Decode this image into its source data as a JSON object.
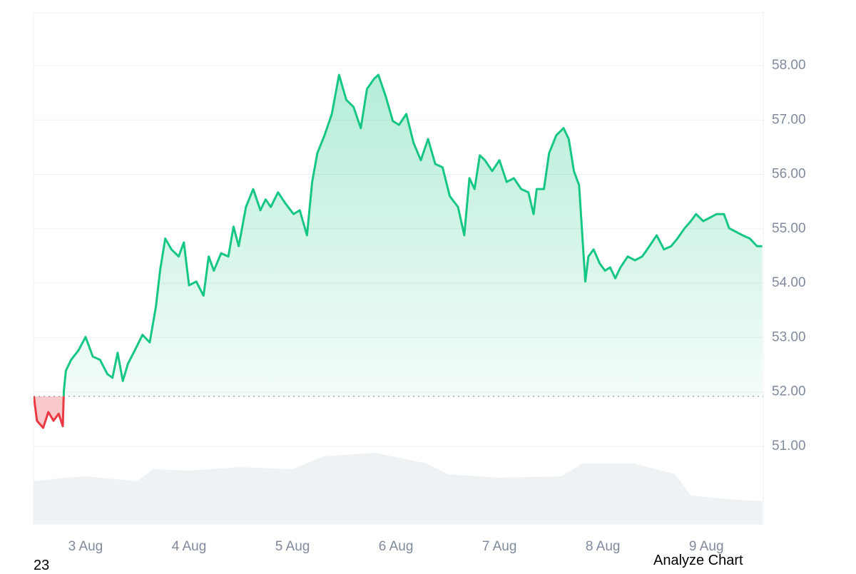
{
  "chart_data": {
    "type": "line",
    "baseline": 51.92,
    "x": [
      2.5,
      2.53,
      2.59,
      2.64,
      2.69,
      2.74,
      2.78,
      2.79,
      2.81,
      2.86,
      2.93,
      3.0,
      3.07,
      3.14,
      3.21,
      3.26,
      3.31,
      3.36,
      3.41,
      3.48,
      3.55,
      3.62,
      3.68,
      3.72,
      3.77,
      3.83,
      3.9,
      3.95,
      4.0,
      4.07,
      4.14,
      4.19,
      4.24,
      4.31,
      4.38,
      4.43,
      4.48,
      4.55,
      4.62,
      4.69,
      4.74,
      4.79,
      4.86,
      4.93,
      5.01,
      5.07,
      5.14,
      5.19,
      5.24,
      5.31,
      5.38,
      5.45,
      5.52,
      5.59,
      5.66,
      5.72,
      5.79,
      5.83,
      5.9,
      5.97,
      6.03,
      6.1,
      6.17,
      6.24,
      6.31,
      6.38,
      6.45,
      6.52,
      6.6,
      6.66,
      6.71,
      6.76,
      6.81,
      6.86,
      6.93,
      7.0,
      7.07,
      7.14,
      7.21,
      7.28,
      7.33,
      7.36,
      7.43,
      7.48,
      7.55,
      7.62,
      7.67,
      7.72,
      7.77,
      7.83,
      7.86,
      7.91,
      7.97,
      8.02,
      8.07,
      8.12,
      8.17,
      8.24,
      8.31,
      8.38,
      8.45,
      8.52,
      8.59,
      8.66,
      8.72,
      8.79,
      8.85,
      8.9,
      8.97,
      9.04,
      9.1,
      9.17,
      9.22,
      9.28,
      9.35,
      9.42,
      9.49,
      9.54
    ],
    "series": [
      {
        "color_up": "#16c784",
        "color_down": "#ea3943",
        "values": [
          51.92,
          51.47,
          51.34,
          51.63,
          51.47,
          51.6,
          51.37,
          52.02,
          52.39,
          52.59,
          52.76,
          53.01,
          52.65,
          52.59,
          52.33,
          52.26,
          52.72,
          52.2,
          52.52,
          52.78,
          53.05,
          52.91,
          53.57,
          54.23,
          54.82,
          54.62,
          54.49,
          54.75,
          53.96,
          54.03,
          53.77,
          54.49,
          54.23,
          54.55,
          54.49,
          55.04,
          54.68,
          55.4,
          55.73,
          55.34,
          55.54,
          55.4,
          55.67,
          55.47,
          55.27,
          55.34,
          54.88,
          55.86,
          56.39,
          56.72,
          57.11,
          57.83,
          57.37,
          57.24,
          56.85,
          57.57,
          57.76,
          57.83,
          57.44,
          56.98,
          56.91,
          57.11,
          56.58,
          56.26,
          56.65,
          56.19,
          56.13,
          55.6,
          55.4,
          54.88,
          55.93,
          55.73,
          56.35,
          56.26,
          56.06,
          56.26,
          55.86,
          55.93,
          55.73,
          55.67,
          55.27,
          55.73,
          55.73,
          56.39,
          56.72,
          56.85,
          56.65,
          56.06,
          55.8,
          54.03,
          54.49,
          54.62,
          54.36,
          54.23,
          54.29,
          54.09,
          54.29,
          54.49,
          54.42,
          54.49,
          54.68,
          54.88,
          54.62,
          54.68,
          54.82,
          55.01,
          55.14,
          55.27,
          55.14,
          55.21,
          55.27,
          55.27,
          55.01,
          54.95,
          54.88,
          54.82,
          54.68,
          54.68
        ]
      }
    ],
    "volume": {
      "color": "#eff2f5",
      "ylim": [
        0,
        100
      ],
      "x": [
        2.5,
        2.8,
        3.0,
        3.5,
        3.65,
        4.0,
        4.5,
        5.0,
        5.3,
        5.8,
        6.3,
        6.5,
        7.0,
        7.6,
        7.8,
        8.3,
        8.7,
        8.85,
        9.2,
        9.54
      ],
      "values": [
        30,
        32.5,
        33.5,
        30,
        38.5,
        37.5,
        40,
        38.5,
        47.5,
        50,
        42.5,
        35,
        32.5,
        33.5,
        42.5,
        42.5,
        35,
        20,
        17.5,
        16
      ]
    },
    "xlim": [
      2.497,
      9.55
    ],
    "xticks": [
      {
        "value": 3,
        "label": "3 Aug"
      },
      {
        "value": 4,
        "label": "4 Aug"
      },
      {
        "value": 5,
        "label": "5 Aug"
      },
      {
        "value": 6,
        "label": "6 Aug"
      },
      {
        "value": 7,
        "label": "7 Aug"
      },
      {
        "value": 8,
        "label": "8 Aug"
      },
      {
        "value": 9,
        "label": "9 Aug"
      }
    ],
    "ylim": [
      49.57,
      58.97
    ],
    "yticks": [
      {
        "value": 51,
        "label": "51.00"
      },
      {
        "value": 52,
        "label": "52.00"
      },
      {
        "value": 53,
        "label": "53.00"
      },
      {
        "value": 54,
        "label": "54.00"
      },
      {
        "value": 55,
        "label": "55.00"
      },
      {
        "value": 56,
        "label": "56.00"
      },
      {
        "value": 57,
        "label": "57.00"
      },
      {
        "value": 58,
        "label": "58.00"
      }
    ],
    "grid": true
  },
  "footer": {
    "left": "23",
    "button": "Analyze Chart"
  }
}
